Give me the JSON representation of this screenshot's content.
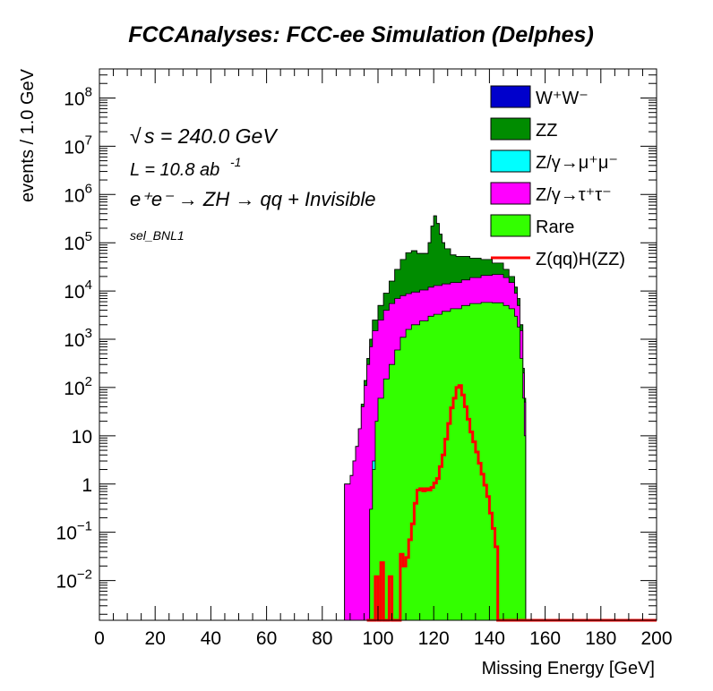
{
  "chart_data": {
    "type": "area",
    "title": "FCCAnalyses: FCC-ee Simulation (Delphes)",
    "xlabel": "Missing Energy [GeV]",
    "ylabel": "events / 1.0 GeV",
    "xlim": [
      0,
      200
    ],
    "ylim": [
      0.0015,
      400000000
    ],
    "yscale": "log",
    "x_ticks": [
      "0",
      "20",
      "40",
      "60",
      "80",
      "100",
      "120",
      "140",
      "160",
      "180",
      "200"
    ],
    "y_ticks": [
      {
        "value": 0.01,
        "base": "10",
        "exp": "−2"
      },
      {
        "value": 0.1,
        "base": "10",
        "exp": "−1"
      },
      {
        "value": 1,
        "base": "1",
        "exp": ""
      },
      {
        "value": 10,
        "base": "10",
        "exp": ""
      },
      {
        "value": 100,
        "base": "10",
        "exp": "2"
      },
      {
        "value": 1000,
        "base": "10",
        "exp": "3"
      },
      {
        "value": 10000,
        "base": "10",
        "exp": "4"
      },
      {
        "value": 100000,
        "base": "10",
        "exp": "5"
      },
      {
        "value": 1000000,
        "base": "10",
        "exp": "6"
      },
      {
        "value": 10000000,
        "base": "10",
        "exp": "7"
      },
      {
        "value": 100000000,
        "base": "10",
        "exp": "8"
      }
    ],
    "annotations": {
      "sqrt_s": "√s = 240.0 GeV",
      "sqrt_symbol": "√",
      "sqrt_text": "s = 240.0 GeV",
      "lumi_base": "L = 10.8 ab",
      "lumi_exp": "-1",
      "process": "e⁺e⁻ → ZH → qq + Invisible",
      "selection": "sel_BNL1"
    },
    "legend_placement": "top-right",
    "legend": [
      {
        "label": "W⁺W⁻",
        "color": "#0000cc",
        "kind": "fill"
      },
      {
        "label": "ZZ",
        "color": "#008c00",
        "kind": "fill"
      },
      {
        "label": "Z/γ→μ⁺μ⁻",
        "color": "#00ffff",
        "kind": "fill"
      },
      {
        "label": "Z/γ→τ⁺τ⁻",
        "color": "#ff00ff",
        "kind": "fill"
      },
      {
        "label": "Rare",
        "color": "#33ff00",
        "kind": "fill"
      },
      {
        "label": "Z(qq)H(ZZ)",
        "color": "#ff0000",
        "kind": "line"
      }
    ],
    "stack_series": [
      {
        "name": "Rare",
        "color": "#33ff00",
        "points": [
          [
            96,
            0.0015
          ],
          [
            97,
            0.3
          ],
          [
            98,
            2
          ],
          [
            99,
            20
          ],
          [
            100,
            60
          ],
          [
            102,
            150
          ],
          [
            104,
            300
          ],
          [
            106,
            600
          ],
          [
            108,
            1100
          ],
          [
            110,
            1600
          ],
          [
            112,
            2000
          ],
          [
            115,
            2400
          ],
          [
            118,
            3000
          ],
          [
            120,
            3300
          ],
          [
            123,
            3800
          ],
          [
            126,
            4300
          ],
          [
            130,
            5000
          ],
          [
            133,
            5500
          ],
          [
            137,
            5800
          ],
          [
            141,
            5700
          ],
          [
            145,
            5000
          ],
          [
            147,
            4300
          ],
          [
            149,
            3000
          ],
          [
            150,
            1800
          ],
          [
            151,
            400
          ],
          [
            152,
            60
          ],
          [
            152.5,
            10
          ],
          [
            153,
            0.0015
          ]
        ]
      },
      {
        "name": "Z/γ→μ⁺μ⁻",
        "color": "#00ffff",
        "points": [
          [
            88,
            0.0015
          ],
          [
            96,
            0.0015
          ],
          [
            97,
            0.3
          ],
          [
            98,
            3
          ],
          [
            99,
            5
          ],
          [
            100,
            6
          ],
          [
            101,
            6
          ],
          [
            102,
            7
          ],
          [
            103,
            15
          ],
          [
            104,
            0.2
          ],
          [
            105,
            0.0015
          ],
          [
            112,
            0.0015
          ],
          [
            114,
            1
          ],
          [
            115,
            0.0015
          ],
          [
            118,
            0.0015
          ],
          [
            119,
            1
          ],
          [
            120,
            0.0015
          ],
          [
            134,
            0.0015
          ],
          [
            135,
            1
          ],
          [
            136,
            0.0015
          ],
          [
            138,
            1
          ],
          [
            139,
            0.0015
          ],
          [
            153,
            0.0015
          ]
        ]
      },
      {
        "name": "Z/γ→τ⁺τ⁻",
        "color": "#ff00ff",
        "points": [
          [
            88,
            1
          ],
          [
            89,
            1
          ],
          [
            90,
            1.5
          ],
          [
            91,
            3
          ],
          [
            92,
            6
          ],
          [
            93,
            14
          ],
          [
            94,
            40
          ],
          [
            95,
            110
          ],
          [
            96,
            300
          ],
          [
            97,
            700
          ],
          [
            98,
            1500
          ],
          [
            100,
            2500
          ],
          [
            102,
            4000
          ],
          [
            104,
            5500
          ],
          [
            106,
            7000
          ],
          [
            108,
            8000
          ],
          [
            110,
            8800
          ],
          [
            112,
            9500
          ],
          [
            115,
            10500
          ],
          [
            118,
            12000
          ],
          [
            120,
            13000
          ],
          [
            123,
            14000
          ],
          [
            126,
            15000
          ],
          [
            130,
            17000
          ],
          [
            133,
            19000
          ],
          [
            137,
            21000
          ],
          [
            141,
            22000
          ],
          [
            145,
            19000
          ],
          [
            147,
            15000
          ],
          [
            149,
            9000
          ],
          [
            150,
            5000
          ],
          [
            151,
            1500
          ],
          [
            152,
            200
          ],
          [
            152.5,
            50
          ],
          [
            153,
            0.0015
          ]
        ]
      },
      {
        "name": "ZZ",
        "color": "#008c00",
        "points": [
          [
            88,
            1
          ],
          [
            89,
            1
          ],
          [
            90,
            1.5
          ],
          [
            91,
            3
          ],
          [
            92,
            6
          ],
          [
            93,
            14
          ],
          [
            94,
            45
          ],
          [
            95,
            140
          ],
          [
            96,
            400
          ],
          [
            97,
            1000
          ],
          [
            98,
            2500
          ],
          [
            100,
            5000
          ],
          [
            102,
            9000
          ],
          [
            104,
            16000
          ],
          [
            106,
            28000
          ],
          [
            108,
            45000
          ],
          [
            110,
            62000
          ],
          [
            112,
            68000
          ],
          [
            114,
            60000
          ],
          [
            116,
            60000
          ],
          [
            118,
            100000
          ],
          [
            119,
            220000
          ],
          [
            120,
            360000
          ],
          [
            121,
            250000
          ],
          [
            122,
            150000
          ],
          [
            123,
            100000
          ],
          [
            124,
            75000
          ],
          [
            126,
            56000
          ],
          [
            128,
            52000
          ],
          [
            130,
            52000
          ],
          [
            133,
            48000
          ],
          [
            137,
            45000
          ],
          [
            141,
            38000
          ],
          [
            145,
            28000
          ],
          [
            147,
            20000
          ],
          [
            149,
            12000
          ],
          [
            150,
            7000
          ],
          [
            151,
            2000
          ],
          [
            152,
            250
          ],
          [
            152.5,
            60
          ],
          [
            153,
            0.0015
          ]
        ]
      },
      {
        "name": "W⁺W⁻",
        "color": "#0000cc",
        "points": [
          [
            88,
            1
          ],
          [
            89,
            1
          ],
          [
            90,
            1.5
          ],
          [
            91,
            3
          ],
          [
            92,
            6
          ],
          [
            93,
            14
          ],
          [
            94,
            45
          ],
          [
            95,
            140
          ],
          [
            96,
            400
          ],
          [
            97,
            1000
          ],
          [
            98,
            2500
          ],
          [
            100,
            5000
          ],
          [
            102,
            9000
          ],
          [
            104,
            16000
          ],
          [
            106,
            28000
          ],
          [
            108,
            45000
          ],
          [
            110,
            62000
          ],
          [
            112,
            68000
          ],
          [
            114,
            60000
          ],
          [
            116,
            60000
          ],
          [
            118,
            100000
          ],
          [
            119,
            220000
          ],
          [
            120,
            360000
          ],
          [
            121,
            250000
          ],
          [
            122,
            150000
          ],
          [
            123,
            100000
          ],
          [
            124,
            75000
          ],
          [
            126,
            56000
          ],
          [
            128,
            52000
          ],
          [
            130,
            52000
          ],
          [
            133,
            48000
          ],
          [
            137,
            45000
          ],
          [
            141,
            38000
          ],
          [
            145,
            28000
          ],
          [
            147,
            20000
          ],
          [
            149,
            12000
          ],
          [
            150,
            7000
          ],
          [
            151,
            2000
          ],
          [
            152,
            250
          ],
          [
            152.5,
            60
          ],
          [
            153,
            0.0015
          ]
        ]
      }
    ],
    "signal_series": {
      "name": "Z(qq)H(ZZ)",
      "color": "#ff0000",
      "points": [
        [
          96,
          0.0015
        ],
        [
          99,
          0.0015
        ],
        [
          99,
          0.012
        ],
        [
          100,
          0.012
        ],
        [
          100,
          0.0015
        ],
        [
          101,
          0.0015
        ],
        [
          101,
          0.0235
        ],
        [
          102,
          0.0235
        ],
        [
          102,
          0.0015
        ],
        [
          104,
          0.0015
        ],
        [
          104,
          0.012
        ],
        [
          105,
          0.012
        ],
        [
          105,
          0.0015
        ],
        [
          108,
          0.0015
        ],
        [
          108,
          0.035
        ],
        [
          109,
          0.035
        ],
        [
          109,
          0.02
        ],
        [
          110,
          0.02
        ],
        [
          110,
          0.03
        ],
        [
          111,
          0.03
        ],
        [
          111,
          0.07
        ],
        [
          112,
          0.07
        ],
        [
          112,
          0.15
        ],
        [
          113,
          0.15
        ],
        [
          113,
          0.4
        ],
        [
          114,
          0.4
        ],
        [
          114,
          0.75
        ],
        [
          115,
          0.75
        ],
        [
          115,
          0.8
        ],
        [
          116,
          0.8
        ],
        [
          116,
          0.72
        ],
        [
          117,
          0.72
        ],
        [
          117,
          0.8
        ],
        [
          118,
          0.8
        ],
        [
          118,
          0.75
        ],
        [
          119,
          0.75
        ],
        [
          119,
          0.85
        ],
        [
          120,
          0.85
        ],
        [
          120,
          1.05
        ],
        [
          121,
          1.05
        ],
        [
          121,
          1.3
        ],
        [
          122,
          1.3
        ],
        [
          122,
          2.3
        ],
        [
          123,
          2.3
        ],
        [
          123,
          4
        ],
        [
          124,
          4
        ],
        [
          124,
          8.5
        ],
        [
          125,
          8.5
        ],
        [
          125,
          18
        ],
        [
          126,
          18
        ],
        [
          126,
          38
        ],
        [
          127,
          38
        ],
        [
          127,
          60
        ],
        [
          128,
          60
        ],
        [
          128,
          100
        ],
        [
          129,
          100
        ],
        [
          129,
          110
        ],
        [
          130,
          110
        ],
        [
          130,
          70
        ],
        [
          131,
          70
        ],
        [
          131,
          40
        ],
        [
          132,
          40
        ],
        [
          132,
          22
        ],
        [
          133,
          22
        ],
        [
          133,
          12
        ],
        [
          134,
          12
        ],
        [
          134,
          7.5
        ],
        [
          135,
          7.5
        ],
        [
          135,
          4.6
        ],
        [
          136,
          4.6
        ],
        [
          136,
          2.7
        ],
        [
          137,
          2.7
        ],
        [
          137,
          1.6
        ],
        [
          138,
          1.6
        ],
        [
          138,
          0.95
        ],
        [
          139,
          0.95
        ],
        [
          139,
          0.55
        ],
        [
          140,
          0.55
        ],
        [
          140,
          0.25
        ],
        [
          141,
          0.25
        ],
        [
          141,
          0.12
        ],
        [
          142,
          0.12
        ],
        [
          142,
          0.05
        ],
        [
          143,
          0.05
        ],
        [
          143,
          0.0015
        ],
        [
          200,
          0.0015
        ]
      ]
    }
  }
}
